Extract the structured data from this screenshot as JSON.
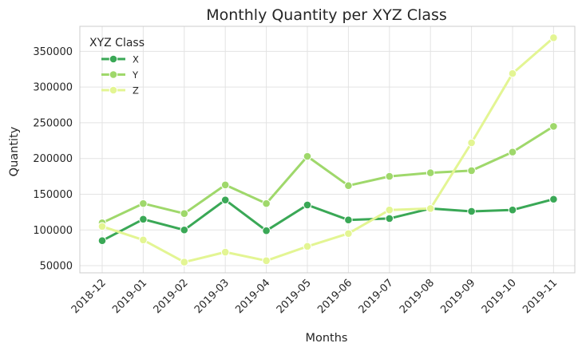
{
  "chart_data": {
    "type": "line",
    "title": "Monthly Quantity per XYZ Class",
    "xlabel": "Months",
    "ylabel": "Quantity",
    "categories": [
      "2018-12",
      "2019-01",
      "2019-02",
      "2019-03",
      "2019-04",
      "2019-05",
      "2019-06",
      "2019-07",
      "2019-08",
      "2019-09",
      "2019-10",
      "2019-11"
    ],
    "ylim": [
      40000,
      385000
    ],
    "yticks": [
      50000,
      100000,
      150000,
      200000,
      250000,
      300000,
      350000
    ],
    "grid": true,
    "legend": {
      "title": "XYZ Class",
      "placement": "top-left"
    },
    "series": [
      {
        "name": "X",
        "color": "#3aa856",
        "values": [
          85000,
          115000,
          100000,
          142000,
          99000,
          135000,
          114000,
          116000,
          130000,
          126000,
          128000,
          143000
        ]
      },
      {
        "name": "Y",
        "color": "#9fd86b",
        "values": [
          110000,
          137000,
          123000,
          163000,
          137000,
          203000,
          162000,
          175000,
          180000,
          183000,
          209000,
          245000
        ]
      },
      {
        "name": "Z",
        "color": "#e3f593",
        "values": [
          105000,
          86000,
          55000,
          69000,
          57000,
          77000,
          95000,
          128000,
          130000,
          222000,
          319000,
          369000
        ]
      }
    ]
  }
}
